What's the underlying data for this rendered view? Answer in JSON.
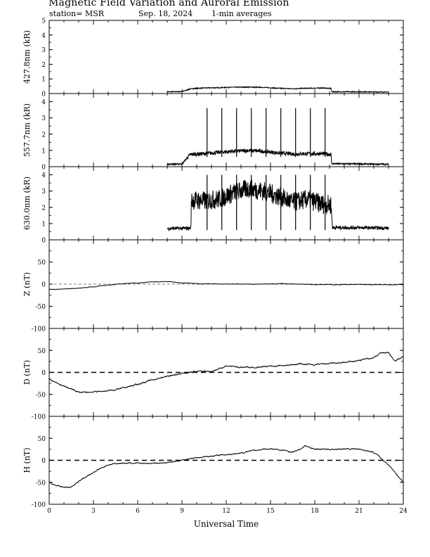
{
  "header": {
    "title": "Magnetic Field Variation and Auroral Emission",
    "station": "station= MSR",
    "date": "Sep. 18, 2024",
    "note": "1-min averages"
  },
  "chart_data": [
    {
      "type": "line",
      "ylabel": "427.8nm (kR)",
      "ylim": [
        0,
        5
      ],
      "yticks": [
        0,
        1,
        2,
        3,
        4,
        5
      ],
      "series": [
        {
          "x": [
            8.0,
            9.0,
            9.6,
            10.5,
            11.5,
            12.5,
            13.5,
            14.5,
            15.5,
            16.5,
            17.5,
            18.5,
            19.1,
            19.15,
            21.0,
            23.0
          ],
          "values": [
            0.12,
            0.13,
            0.33,
            0.38,
            0.4,
            0.43,
            0.44,
            0.42,
            0.36,
            0.33,
            0.36,
            0.38,
            0.35,
            0.12,
            0.12,
            0.1
          ]
        }
      ],
      "spikes": []
    },
    {
      "type": "line",
      "ylabel": "557.7nm (kR)",
      "ylim": [
        0,
        4.5
      ],
      "yticks": [
        0,
        1,
        2,
        3,
        4
      ],
      "series": [
        {
          "x": [
            8.0,
            9.0,
            9.55,
            10.5,
            11.5,
            12.5,
            13.5,
            14.5,
            15.5,
            16.5,
            17.5,
            18.5,
            19.1,
            19.15,
            21.0,
            23.0
          ],
          "values": [
            0.15,
            0.17,
            0.75,
            0.8,
            0.88,
            0.95,
            1.0,
            0.95,
            0.85,
            0.78,
            0.8,
            0.8,
            0.75,
            0.18,
            0.17,
            0.15
          ]
        }
      ],
      "spikes": [
        {
          "x": 10.7,
          "top": 3.6,
          "bottom": 0.6
        },
        {
          "x": 11.7,
          "top": 3.6,
          "bottom": 0.6
        },
        {
          "x": 12.7,
          "top": 3.6,
          "bottom": 0.6
        },
        {
          "x": 13.7,
          "top": 3.6,
          "bottom": 0.6
        },
        {
          "x": 14.7,
          "top": 3.6,
          "bottom": 0.6
        },
        {
          "x": 15.7,
          "top": 3.6,
          "bottom": 0.6
        },
        {
          "x": 16.7,
          "top": 3.6,
          "bottom": 0.6
        },
        {
          "x": 17.7,
          "top": 3.6,
          "bottom": 0.6
        },
        {
          "x": 18.7,
          "top": 3.6,
          "bottom": 0.6
        }
      ]
    },
    {
      "type": "line",
      "ylabel": "630.0nm (kR)",
      "ylim": [
        0,
        4.5
      ],
      "yticks": [
        0,
        1,
        2,
        3,
        4
      ],
      "series": [
        {
          "x": [
            8.0,
            9.0,
            9.6,
            9.65,
            10.5,
            11.5,
            12.5,
            13.5,
            14.5,
            15.5,
            16.5,
            17.5,
            18.5,
            19.1,
            19.2,
            21.0,
            23.0
          ],
          "values": [
            0.7,
            0.7,
            0.72,
            2.45,
            2.4,
            2.5,
            2.9,
            3.15,
            3.0,
            2.7,
            2.3,
            2.5,
            2.2,
            2.15,
            0.75,
            0.75,
            0.72
          ]
        }
      ],
      "spikes": [
        {
          "x": 10.7,
          "top": 4.0,
          "bottom": 0.6
        },
        {
          "x": 11.7,
          "top": 4.0,
          "bottom": 0.6
        },
        {
          "x": 12.7,
          "top": 4.0,
          "bottom": 0.6
        },
        {
          "x": 13.7,
          "top": 4.0,
          "bottom": 0.6
        },
        {
          "x": 14.7,
          "top": 4.0,
          "bottom": 0.6
        },
        {
          "x": 15.7,
          "top": 4.0,
          "bottom": 0.6
        },
        {
          "x": 16.7,
          "top": 4.0,
          "bottom": 0.6
        },
        {
          "x": 17.7,
          "top": 4.0,
          "bottom": 0.6
        },
        {
          "x": 18.7,
          "top": 4.0,
          "bottom": 0.6
        }
      ]
    },
    {
      "type": "line",
      "ylabel": "Z (nT)",
      "ylim": [
        -100,
        100
      ],
      "yticks": [
        -100,
        -50,
        0,
        50
      ],
      "zero_line": "thin-dashed",
      "series": [
        {
          "x": [
            0,
            1,
            2,
            3,
            4,
            5,
            6,
            7,
            8,
            9,
            10,
            12,
            14,
            16,
            17,
            18,
            20,
            22,
            23,
            24
          ],
          "values": [
            -12,
            -11,
            -9,
            -6,
            -2,
            1,
            3,
            5,
            6,
            3,
            1,
            0,
            0,
            1,
            0,
            -1,
            -1,
            -1,
            -1,
            -1
          ]
        }
      ],
      "spikes": []
    },
    {
      "type": "line",
      "ylabel": "D (nT)",
      "ylim": [
        -100,
        100
      ],
      "yticks": [
        -100,
        -50,
        0,
        50
      ],
      "zero_line": "thick-dashed",
      "series": [
        {
          "x": [
            0,
            0.5,
            1,
            1.5,
            2,
            2.5,
            3,
            4,
            5,
            6,
            7,
            8,
            9,
            10,
            11,
            11.5,
            12,
            13,
            14,
            15,
            16,
            17,
            18,
            19,
            20,
            21,
            22,
            22.5,
            23,
            23.4,
            24
          ],
          "values": [
            -15,
            -25,
            -32,
            -38,
            -45,
            -46,
            -44,
            -42,
            -36,
            -27,
            -17,
            -9,
            -2,
            2,
            3,
            8,
            15,
            11,
            12,
            14,
            16,
            19,
            17,
            20,
            22,
            27,
            34,
            45,
            45,
            27,
            35
          ]
        }
      ],
      "spikes": []
    },
    {
      "type": "line",
      "ylabel": "H (nT)",
      "ylim": [
        -100,
        100
      ],
      "yticks": [
        -100,
        -50,
        0,
        50
      ],
      "xlabel": "Universal Time",
      "xticks": [
        0,
        3,
        6,
        9,
        12,
        15,
        18,
        21,
        24
      ],
      "xlim": [
        0,
        24
      ],
      "zero_line": "thick-dashed",
      "series": [
        {
          "x": [
            0,
            0.5,
            1,
            1.5,
            2,
            2.5,
            3,
            3.5,
            4,
            5,
            6,
            7,
            8,
            9,
            10,
            11,
            12,
            13,
            14,
            15,
            16,
            16.5,
            17,
            17.3,
            17.5,
            18,
            19,
            20,
            21,
            22,
            23,
            23.5,
            24
          ],
          "values": [
            -50,
            -57,
            -62,
            -60,
            -48,
            -38,
            -28,
            -18,
            -10,
            -6,
            -7,
            -7,
            -5,
            0,
            6,
            10,
            13,
            17,
            23,
            26,
            22,
            18,
            25,
            33,
            31,
            26,
            25,
            26,
            26,
            18,
            -10,
            -30,
            -50
          ]
        }
      ],
      "spikes": []
    }
  ]
}
